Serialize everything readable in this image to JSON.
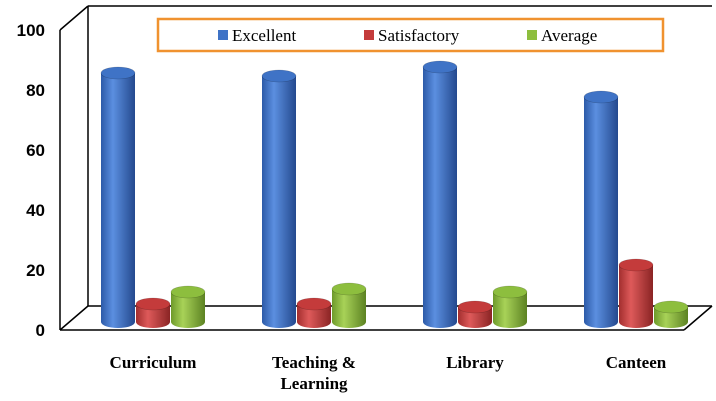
{
  "chart_data": {
    "type": "bar",
    "categories": [
      [
        "Curriculum"
      ],
      [
        "Teaching &",
        "Learning"
      ],
      [
        "Library"
      ],
      [
        "Canteen"
      ]
    ],
    "series": [
      {
        "name": "Excellent",
        "values": [
          83,
          82,
          85,
          75
        ],
        "color": "#3F73C6"
      },
      {
        "name": "Satisfactory",
        "values": [
          6,
          6,
          5,
          19
        ],
        "color": "#C43B3B"
      },
      {
        "name": "Average",
        "values": [
          10,
          11,
          10,
          5
        ],
        "color": "#8DBE3E"
      }
    ],
    "yticks": [
      "0",
      "20",
      "40",
      "60",
      "80",
      "100"
    ],
    "ylim": [
      0,
      100
    ],
    "grid": false,
    "legend_position": "top",
    "legend_border_color": "#F0922F"
  }
}
